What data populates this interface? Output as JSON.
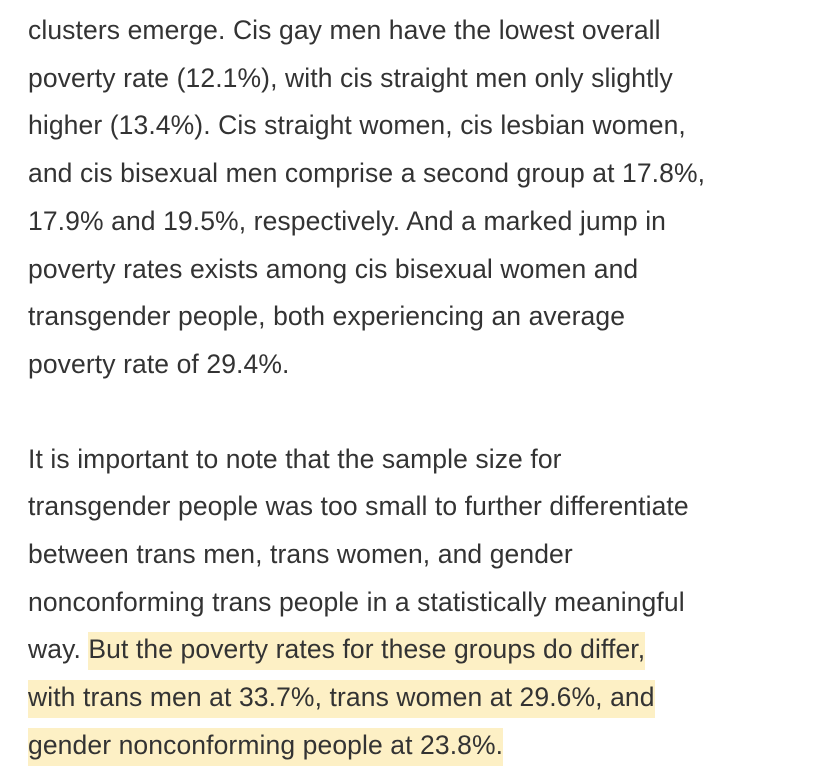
{
  "paragraphs": [
    {
      "lines": [
        "clusters emerge. Cis gay men have the lowest overall",
        "poverty rate (12.1%), with cis straight men only slightly",
        "higher (13.4%). Cis straight women, cis lesbian women,",
        "and cis bisexual men comprise a second group at 17.8%,",
        "17.9% and 19.5%, respectively. And a marked jump in",
        "poverty rates exists among cis bisexual women and",
        "transgender people, both experiencing an average",
        "poverty rate of 29.4%."
      ]
    },
    {
      "lines": [
        "It is important to note that the sample size for",
        "transgender people was too small to further differentiate",
        "between trans men, trans women, and gender",
        "nonconforming trans people in a statistically meaningful"
      ],
      "line5_plain": "way. ",
      "highlighted": [
        "But the poverty rates for these groups do differ,",
        "with trans men at 33.7%, trans women at 29.6%, and",
        "gender nonconforming people at 23.8%."
      ],
      "highlight_color": "#fdf0c5"
    }
  ],
  "text_color": "#333333"
}
